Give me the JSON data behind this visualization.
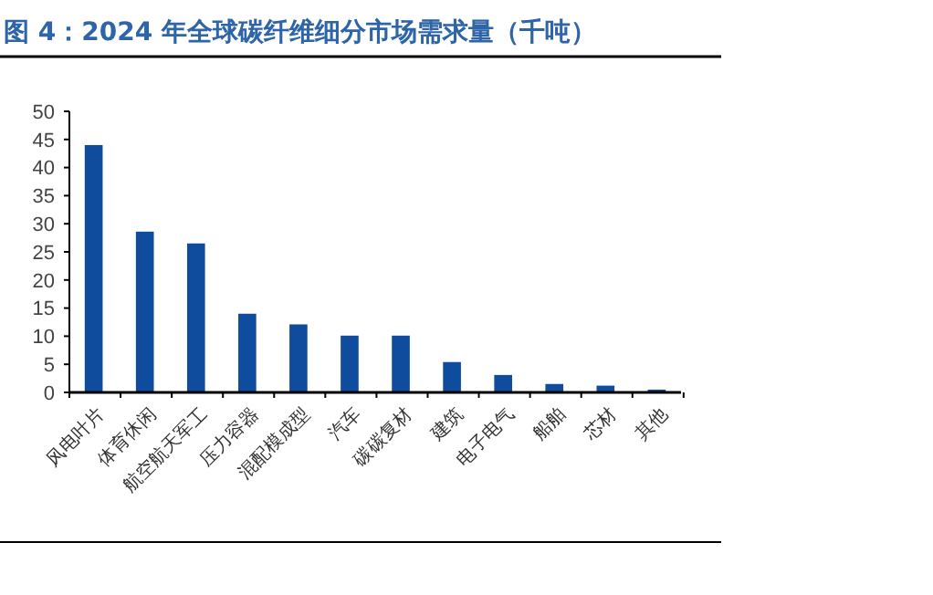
{
  "chart_data": {
    "type": "bar",
    "title": "图 4：2024 年全球碳纤维细分市场需求量（千吨）",
    "categories": [
      "风电叶片",
      "体育休闲",
      "航空航天军工",
      "压力容器",
      "混配模成型",
      "汽车",
      "碳碳复材",
      "建筑",
      "电子电气",
      "船舶",
      "芯材",
      "其他"
    ],
    "values": [
      44,
      28.6,
      26.5,
      14,
      12.1,
      10.1,
      10.1,
      5.4,
      3.1,
      1.5,
      1.2,
      0.5
    ],
    "color": "#0f4c9e",
    "ylim": [
      0,
      50
    ],
    "yticks": [
      0,
      5,
      10,
      15,
      20,
      25,
      30,
      35,
      40,
      45,
      50
    ],
    "grid": false
  }
}
